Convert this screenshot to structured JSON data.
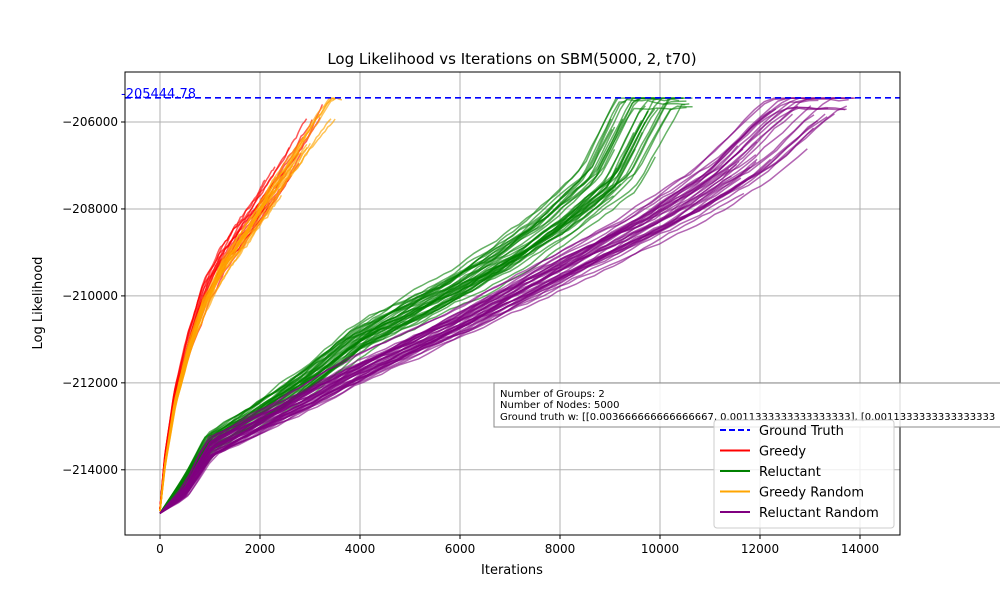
{
  "chart_data": {
    "type": "line",
    "title": "Log Likelihood vs Iterations on SBM(5000, 2, t70)",
    "xlabel": "Iterations",
    "ylabel": "Log Likelihood",
    "xlim": [
      -700,
      14800
    ],
    "ylim": [
      -215500,
      -204850
    ],
    "xticks": [
      0,
      2000,
      4000,
      6000,
      8000,
      10000,
      12000,
      14000
    ],
    "yticks": [
      -214000,
      -212000,
      -210000,
      -208000,
      -206000
    ],
    "xtick_labels": [
      "0",
      "2000",
      "4000",
      "6000",
      "8000",
      "10000",
      "12000",
      "14000"
    ],
    "ytick_labels": [
      "−214000",
      "−212000",
      "−210000",
      "−208000",
      "−206000"
    ],
    "grid": true,
    "ground_truth": {
      "name": "Ground Truth",
      "value": -205444.78,
      "label": "-205444.78",
      "color": "#0000ff"
    },
    "series": [
      {
        "name": "Greedy",
        "color": "#ff0000",
        "alpha": 0.65,
        "runs": 16,
        "shape": [
          [
            0,
            -214900
          ],
          [
            100,
            -213700
          ],
          [
            300,
            -212300
          ],
          [
            600,
            -211000
          ],
          [
            900,
            -210000
          ],
          [
            1300,
            -209100
          ],
          [
            1800,
            -208300
          ],
          [
            2400,
            -207300
          ],
          [
            3000,
            -206200
          ],
          [
            3250,
            -205500
          ]
        ],
        "end_x_min": 2000,
        "end_x_max": 3300
      },
      {
        "name": "Reluctant",
        "color": "#008000",
        "alpha": 0.6,
        "runs": 40,
        "shape": [
          [
            0,
            -215000
          ],
          [
            500,
            -214300
          ],
          [
            1000,
            -213400
          ],
          [
            2000,
            -212700
          ],
          [
            3000,
            -211900
          ],
          [
            4000,
            -211000
          ],
          [
            5000,
            -210400
          ],
          [
            6000,
            -209800
          ],
          [
            7000,
            -209100
          ],
          [
            8000,
            -208300
          ],
          [
            9000,
            -207300
          ],
          [
            9800,
            -205500
          ]
        ],
        "end_x_min": 9000,
        "end_x_max": 10700
      },
      {
        "name": "Greedy Random",
        "color": "#ffa500",
        "alpha": 0.65,
        "runs": 16,
        "shape": [
          [
            0,
            -214950
          ],
          [
            100,
            -213900
          ],
          [
            300,
            -212500
          ],
          [
            600,
            -211200
          ],
          [
            900,
            -210250
          ],
          [
            1300,
            -209350
          ],
          [
            1800,
            -208550
          ],
          [
            2400,
            -207500
          ],
          [
            3100,
            -206300
          ],
          [
            3650,
            -205450
          ]
        ],
        "end_x_min": 2000,
        "end_x_max": 3700
      },
      {
        "name": "Reluctant Random",
        "color": "#800080",
        "alpha": 0.6,
        "runs": 40,
        "shape": [
          [
            0,
            -215000
          ],
          [
            500,
            -214500
          ],
          [
            1000,
            -213500
          ],
          [
            2000,
            -212900
          ],
          [
            4000,
            -211700
          ],
          [
            6000,
            -210600
          ],
          [
            8000,
            -209400
          ],
          [
            10000,
            -208200
          ],
          [
            11500,
            -207100
          ],
          [
            12500,
            -206000
          ],
          [
            13000,
            -205550
          ],
          [
            13300,
            -205450
          ]
        ],
        "end_x_min": 11200,
        "end_x_max": 14050
      }
    ],
    "legend": {
      "position": "lower right",
      "entries": [
        {
          "label": "Ground Truth",
          "color": "#0000ff",
          "style": "dashed"
        },
        {
          "label": "Greedy",
          "color": "#ff0000",
          "style": "solid"
        },
        {
          "label": "Reluctant",
          "color": "#008000",
          "style": "solid"
        },
        {
          "label": "Greedy Random",
          "color": "#ffa500",
          "style": "solid"
        },
        {
          "label": "Reluctant Random",
          "color": "#800080",
          "style": "solid"
        }
      ]
    },
    "annotation": {
      "lines": [
        "Number of Groups: 2",
        "Number of Nodes: 5000",
        "Ground truth w: [[0.003666666666666667, 0.0011333333333333333], [0.0011333333333333333"
      ]
    }
  }
}
